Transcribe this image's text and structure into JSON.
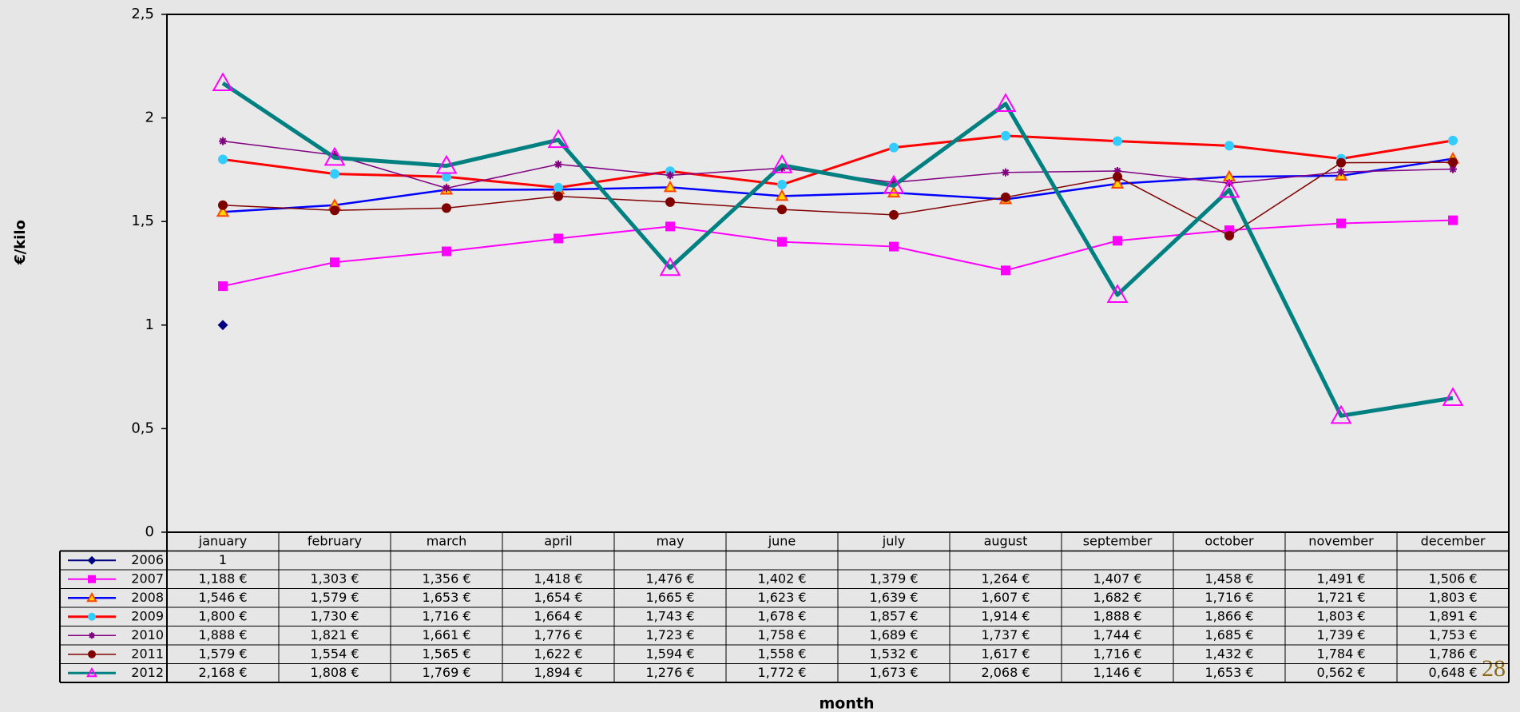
{
  "chart_data": {
    "type": "line",
    "y_label": "€/kilo",
    "x_label": "month",
    "categories": [
      "january",
      "february",
      "march",
      "april",
      "may",
      "june",
      "july",
      "august",
      "september",
      "october",
      "november",
      "december"
    ],
    "ylim": [
      0,
      2.5
    ],
    "yticks": [
      0,
      {
        "value": 0.5,
        "label": "0,5"
      },
      1,
      {
        "value": 1.5,
        "label": "1,5"
      },
      2,
      {
        "value": 2.5,
        "label": "2,5"
      }
    ],
    "series": [
      {
        "name": "2006",
        "color": "#000080",
        "marker": "diamond",
        "marker_fill": "#000080",
        "marker_stroke": "#000080",
        "line_width": 2,
        "values": [
          1,
          null,
          null,
          null,
          null,
          null,
          null,
          null,
          null,
          null,
          null,
          null
        ],
        "value_labels": [
          "1",
          null,
          null,
          null,
          null,
          null,
          null,
          null,
          null,
          null,
          null,
          null
        ]
      },
      {
        "name": "2007",
        "color": "#ff00ff",
        "marker": "square",
        "marker_fill": "#ff00ff",
        "marker_stroke": "#ff00ff",
        "line_width": 2,
        "values": [
          1.188,
          1.303,
          1.356,
          1.418,
          1.476,
          1.402,
          1.379,
          1.264,
          1.407,
          1.458,
          1.491,
          1.506
        ],
        "value_labels": [
          "1,188 €",
          "1,303 €",
          "1,356 €",
          "1,418 €",
          "1,476 €",
          "1,402 €",
          "1,379 €",
          "1,264 €",
          "1,407 €",
          "1,458 €",
          "1,491 €",
          "1,506 €"
        ]
      },
      {
        "name": "2008",
        "color": "#0000ff",
        "marker": "triangle",
        "marker_fill": "#ffd700",
        "marker_stroke": "#ff4500",
        "line_width": 2.5,
        "values": [
          1.546,
          1.579,
          1.653,
          1.654,
          1.665,
          1.623,
          1.639,
          1.607,
          1.682,
          1.716,
          1.721,
          1.803
        ],
        "value_labels": [
          "1,546 €",
          "1,579 €",
          "1,653 €",
          "1,654 €",
          "1,665 €",
          "1,623 €",
          "1,639 €",
          "1,607 €",
          "1,682 €",
          "1,716 €",
          "1,721 €",
          "1,803 €"
        ]
      },
      {
        "name": "2009",
        "color": "#ff0000",
        "marker": "circle",
        "marker_fill": "#33ccff",
        "marker_stroke": "#33ccff",
        "line_width": 3,
        "values": [
          1.8,
          1.73,
          1.716,
          1.664,
          1.743,
          1.678,
          1.857,
          1.914,
          1.888,
          1.866,
          1.803,
          1.891
        ],
        "value_labels": [
          "1,800 €",
          "1,730 €",
          "1,716 €",
          "1,664 €",
          "1,743 €",
          "1,678 €",
          "1,857 €",
          "1,914 €",
          "1,888 €",
          "1,866 €",
          "1,803 €",
          "1,891 €"
        ]
      },
      {
        "name": "2010",
        "color": "#800080",
        "marker": "star",
        "marker_fill": "none",
        "marker_stroke": "#800080",
        "line_width": 1.5,
        "values": [
          1.888,
          1.821,
          1.661,
          1.776,
          1.723,
          1.758,
          1.689,
          1.737,
          1.744,
          1.685,
          1.739,
          1.753
        ],
        "value_labels": [
          "1,888 €",
          "1,821 €",
          "1,661 €",
          "1,776 €",
          "1,723 €",
          "1,758 €",
          "1,689 €",
          "1,737 €",
          "1,744 €",
          "1,685 €",
          "1,739 €",
          "1,753 €"
        ]
      },
      {
        "name": "2011",
        "color": "#800000",
        "marker": "circle",
        "marker_fill": "#800000",
        "marker_stroke": "#800000",
        "line_width": 1.5,
        "values": [
          1.579,
          1.554,
          1.565,
          1.622,
          1.594,
          1.558,
          1.532,
          1.617,
          1.716,
          1.432,
          1.784,
          1.786
        ],
        "value_labels": [
          "1,579 €",
          "1,554 €",
          "1,565 €",
          "1,622 €",
          "1,594 €",
          "1,558 €",
          "1,532 €",
          "1,617 €",
          "1,716 €",
          "1,432 €",
          "1,784 €",
          "1,786 €"
        ]
      },
      {
        "name": "2012",
        "color": "#008080",
        "marker": "triangle",
        "marker_fill": "none",
        "marker_stroke": "#ff00ff",
        "line_width": 5,
        "values": [
          2.168,
          1.808,
          1.769,
          1.894,
          1.276,
          1.772,
          1.673,
          2.068,
          1.146,
          1.653,
          0.562,
          0.648
        ],
        "value_labels": [
          "2,168 €",
          "1,808 €",
          "1,769 €",
          "1,894 €",
          "1,276 €",
          "1,772 €",
          "1,673 €",
          "2,068 €",
          "1,146 €",
          "1,653 €",
          "0,562 €",
          "0,648 €"
        ]
      }
    ]
  },
  "page_number": "28"
}
